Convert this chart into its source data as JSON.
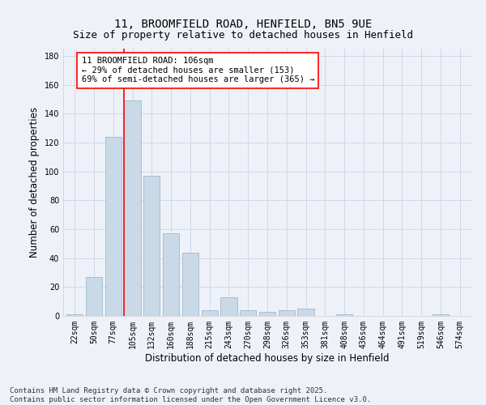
{
  "title1": "11, BROOMFIELD ROAD, HENFIELD, BN5 9UE",
  "title2": "Size of property relative to detached houses in Henfield",
  "xlabel": "Distribution of detached houses by size in Henfield",
  "ylabel": "Number of detached properties",
  "categories": [
    "22sqm",
    "50sqm",
    "77sqm",
    "105sqm",
    "132sqm",
    "160sqm",
    "188sqm",
    "215sqm",
    "243sqm",
    "270sqm",
    "298sqm",
    "326sqm",
    "353sqm",
    "381sqm",
    "408sqm",
    "436sqm",
    "464sqm",
    "491sqm",
    "519sqm",
    "546sqm",
    "574sqm"
  ],
  "values": [
    1,
    27,
    124,
    149,
    97,
    57,
    44,
    4,
    13,
    4,
    3,
    4,
    5,
    0,
    1,
    0,
    0,
    0,
    0,
    1,
    0
  ],
  "bar_color": "#c9d9e8",
  "bar_edge_color": "#a0b8cc",
  "vline_color": "red",
  "vline_position": 2.575,
  "annotation_text": "11 BROOMFIELD ROAD: 106sqm\n← 29% of detached houses are smaller (153)\n69% of semi-detached houses are larger (365) →",
  "annotation_box_color": "white",
  "annotation_box_edge": "red",
  "ylim": [
    0,
    185
  ],
  "yticks": [
    0,
    20,
    40,
    60,
    80,
    100,
    120,
    140,
    160,
    180
  ],
  "grid_color": "#d0d8e8",
  "background_color": "#eef2f8",
  "footer": "Contains HM Land Registry data © Crown copyright and database right 2025.\nContains public sector information licensed under the Open Government Licence v3.0.",
  "title_fontsize": 10,
  "subtitle_fontsize": 9,
  "axis_label_fontsize": 8.5,
  "tick_fontsize": 7,
  "footer_fontsize": 6.5,
  "annotation_fontsize": 7.5
}
